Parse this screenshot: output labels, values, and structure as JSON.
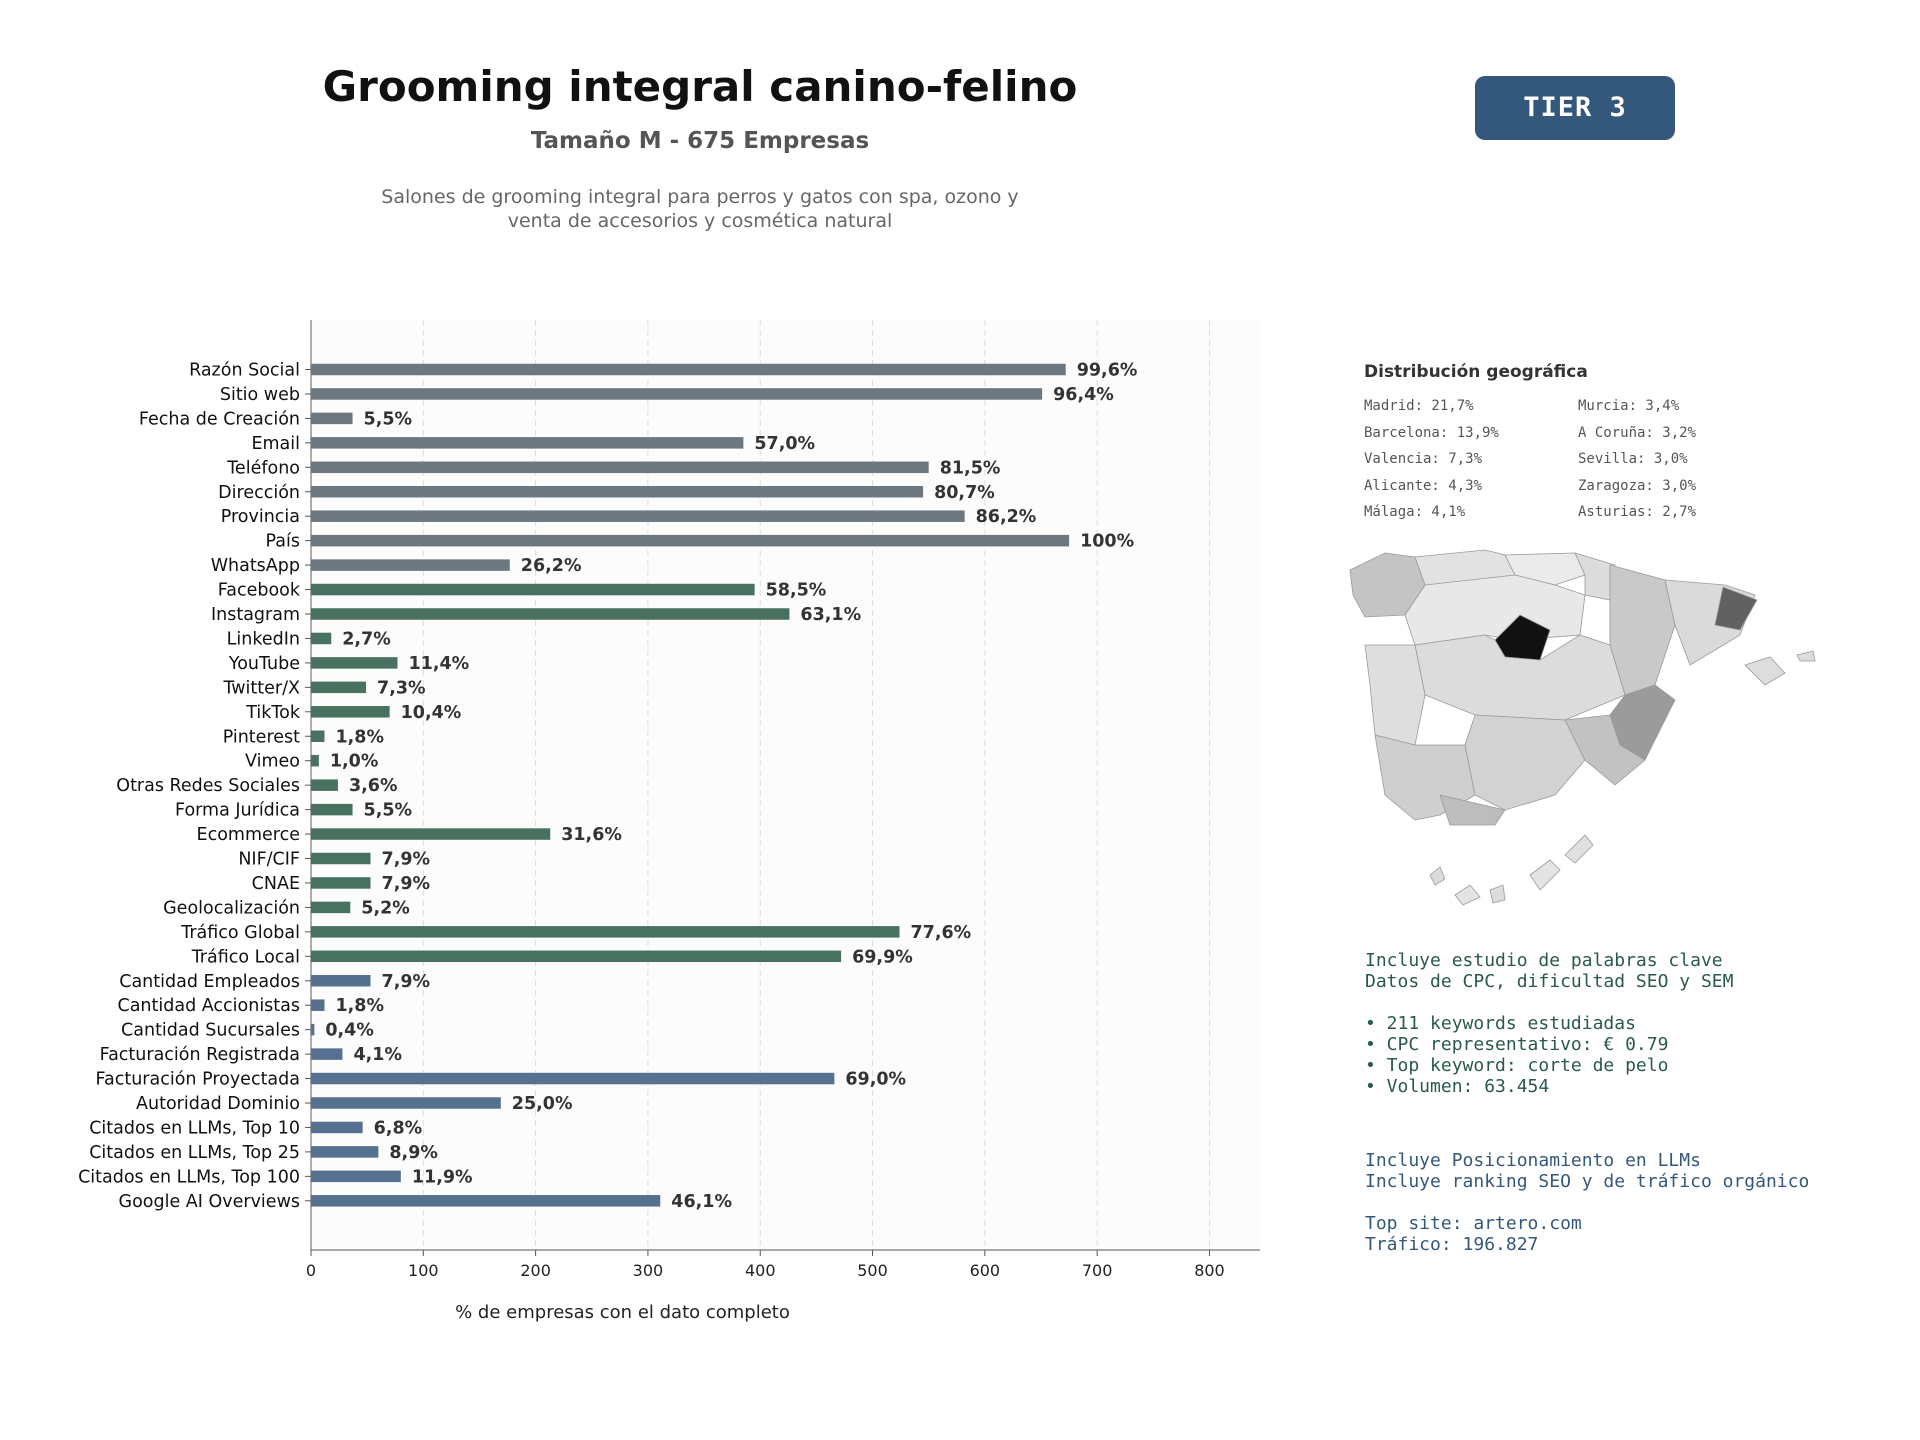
{
  "header": {
    "title": "Grooming integral canino-felino",
    "subtitle": "Tamaño M - 675 Empresas",
    "description_line1": "Salones de grooming integral para perros y gatos con spa, ozono y",
    "description_line2": "venta de accesorios y cosmética natural",
    "tier": "TIER 3"
  },
  "chart_data": {
    "type": "bar",
    "orientation": "horizontal",
    "xlabel": "% de empresas con el dato completo",
    "xlim": [
      0,
      845
    ],
    "xticks": [
      0,
      100,
      200,
      300,
      400,
      500,
      600,
      700,
      800
    ],
    "grid": "vertical dashed",
    "categories": [
      "Razón Social",
      "Sitio web",
      "Fecha de Creación",
      "Email",
      "Teléfono",
      "Dirección",
      "Provincia",
      "País",
      "WhatsApp",
      "Facebook",
      "Instagram",
      "LinkedIn",
      "YouTube",
      "Twitter/X",
      "TikTok",
      "Pinterest",
      "Vimeo",
      "Otras Redes Sociales",
      "Forma Jurídica",
      "Ecommerce",
      "NIF/CIF",
      "CNAE",
      "Geolocalización",
      "Tráfico Global",
      "Tráfico Local",
      "Cantidad Empleados",
      "Cantidad Accionistas",
      "Cantidad Sucursales",
      "Facturación Registrada",
      "Facturación Proyectada",
      "Autoridad Dominio",
      "Citados en LLMs, Top 10",
      "Citados en LLMs, Top 25",
      "Citados en LLMs, Top 100",
      "Google AI Overviews"
    ],
    "values": [
      672,
      651,
      37,
      385,
      550,
      545,
      582,
      675,
      177,
      395,
      426,
      18,
      77,
      49,
      70,
      12,
      7,
      24,
      37,
      213,
      53,
      53,
      35,
      524,
      472,
      53,
      12,
      3,
      28,
      466,
      169,
      46,
      60,
      80,
      311
    ],
    "labels": [
      "99,6%",
      "96,4%",
      "5,5%",
      "57,0%",
      "81,5%",
      "80,7%",
      "86,2%",
      "100%",
      "26,2%",
      "58,5%",
      "63,1%",
      "2,7%",
      "11,4%",
      "7,3%",
      "10,4%",
      "1,8%",
      "1,0%",
      "3,6%",
      "5,5%",
      "31,6%",
      "7,9%",
      "7,9%",
      "5,2%",
      "77,6%",
      "69,9%",
      "7,9%",
      "1,8%",
      "0,4%",
      "4,1%",
      "69,0%",
      "25,0%",
      "6,8%",
      "8,9%",
      "11,9%",
      "46,1%"
    ],
    "groups": [
      "grey",
      "grey",
      "grey",
      "grey",
      "grey",
      "grey",
      "grey",
      "grey",
      "grey",
      "green",
      "green",
      "green",
      "green",
      "green",
      "green",
      "green",
      "green",
      "green",
      "green",
      "green",
      "green",
      "green",
      "green",
      "green",
      "green",
      "blue",
      "blue",
      "blue",
      "blue",
      "blue",
      "blue",
      "blue",
      "blue",
      "blue",
      "blue"
    ],
    "colors": {
      "grey": "#6d7780",
      "green": "#48725f",
      "blue": "#56718f"
    }
  },
  "geo": {
    "title": "Distribución geográfica",
    "left": [
      "Madrid: 21,7%",
      "Barcelona: 13,9%",
      "Valencia: 7,3%",
      "Alicante: 4,3%",
      "Málaga: 4,1%"
    ],
    "right": [
      "Murcia: 3,4%",
      "A Coruña: 3,2%",
      "Sevilla: 3,0%",
      "Zaragoza: 3,0%",
      "Asturias: 2,7%"
    ]
  },
  "keywords": {
    "line1": "Incluye estudio de palabras clave",
    "line2": "Datos de CPC, dificultad SEO y SEM",
    "bullet1": "• 211 keywords estudiadas",
    "bullet2": "• CPC representativo: € 0.79",
    "bullet3": "• Top keyword: corte de pelo",
    "bullet4": "• Volumen: 63.454"
  },
  "llm": {
    "line1": "Incluye Posicionamiento en LLMs",
    "line2": "Incluye ranking SEO y de tráfico orgánico",
    "top_site": "Top site: artero.com",
    "traffic": "Tráfico: 196.827"
  }
}
